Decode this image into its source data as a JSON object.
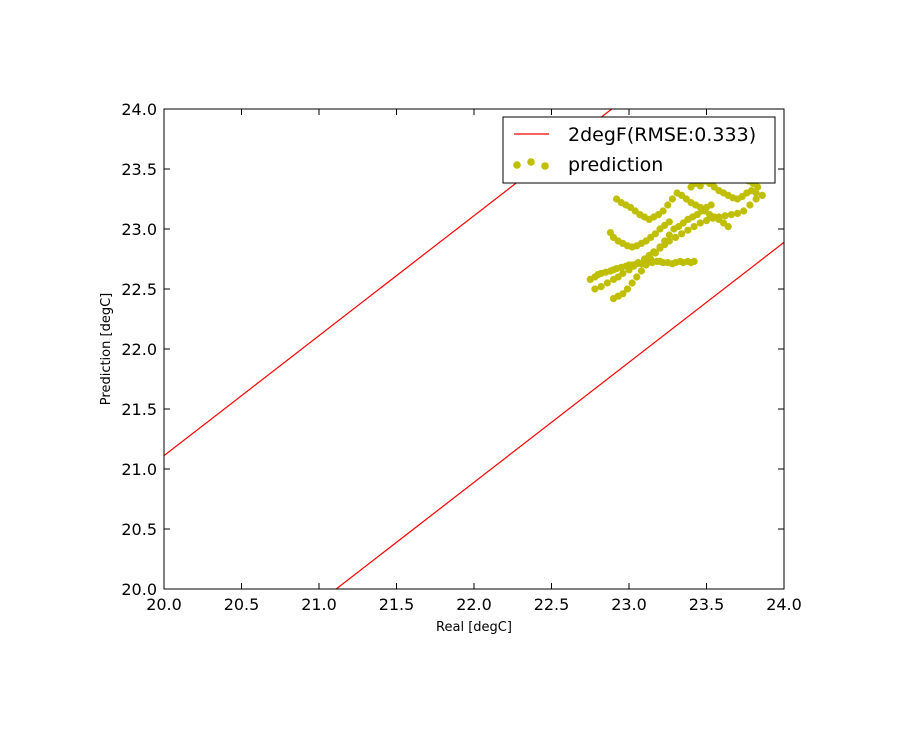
{
  "chart_data": {
    "type": "scatter",
    "xlabel": "Real [degC]",
    "ylabel": "Prediction [degC]",
    "xlim": [
      20.0,
      24.0
    ],
    "ylim": [
      20.0,
      24.0
    ],
    "x_ticks": [
      "20.0",
      "20.5",
      "21.0",
      "21.5",
      "22.0",
      "22.5",
      "23.0",
      "23.5",
      "24.0"
    ],
    "y_ticks": [
      "20.0",
      "20.5",
      "21.0",
      "21.5",
      "22.0",
      "22.5",
      "23.0",
      "23.5",
      "24.0"
    ],
    "grid": false,
    "legend_position": "top-right",
    "legend": {
      "band_label": "2degF(RMSE:0.333)",
      "points_label": "prediction"
    },
    "band": {
      "color": "#ff0000",
      "lines": [
        {
          "x": [
            20.0,
            24.0
          ],
          "y": [
            21.111,
            25.111
          ]
        },
        {
          "x": [
            20.0,
            24.0
          ],
          "y": [
            18.889,
            22.889
          ]
        }
      ]
    },
    "series": [
      {
        "name": "prediction",
        "color": "#bfbf00",
        "x": [
          22.75,
          22.78,
          22.8,
          22.82,
          22.85,
          22.88,
          22.9,
          22.92,
          22.95,
          22.98,
          23.0,
          23.02,
          23.05,
          23.08,
          23.1,
          23.12,
          23.15,
          23.18,
          23.2,
          23.22,
          23.25,
          23.28,
          23.3,
          23.33,
          23.35,
          23.38,
          23.4,
          23.42,
          22.78,
          22.82,
          22.86,
          22.9,
          22.93,
          22.96,
          23.0,
          23.03,
          23.06,
          23.1,
          23.13,
          23.16,
          23.2,
          23.23,
          23.26,
          23.3,
          23.34,
          23.38,
          23.42,
          23.46,
          23.5,
          23.54,
          23.58,
          23.62,
          23.66,
          23.7,
          23.74,
          23.78,
          23.82,
          23.86,
          22.9,
          22.93,
          22.96,
          22.99,
          23.02,
          23.05,
          23.08,
          23.11,
          23.14,
          23.17,
          23.2,
          23.23,
          23.26,
          23.29,
          23.32,
          23.35,
          23.38,
          23.41,
          23.44,
          23.47,
          23.5,
          23.53,
          22.92,
          22.95,
          22.98,
          23.01,
          23.04,
          23.07,
          23.1,
          23.13,
          23.16,
          23.19,
          23.22,
          23.25,
          23.28,
          23.31,
          23.34,
          23.37,
          23.4,
          23.43,
          23.46,
          23.49,
          23.52,
          23.55,
          23.58,
          23.61,
          23.64,
          22.88,
          22.9,
          22.93,
          22.96,
          22.99,
          23.02,
          23.05,
          23.08,
          23.11,
          23.14,
          23.17,
          23.2,
          23.23,
          23.26,
          23.4,
          23.43,
          23.46,
          23.49,
          23.52,
          23.55,
          23.58,
          23.61,
          23.64,
          23.67,
          23.7,
          23.73,
          23.76,
          23.79,
          23.82,
          23.65,
          23.68,
          23.71,
          23.74,
          23.77,
          23.8,
          23.83,
          23.72,
          23.75,
          23.78,
          23.7,
          23.73,
          23.76
        ],
        "y": [
          22.58,
          22.6,
          22.62,
          22.63,
          22.64,
          22.65,
          22.66,
          22.67,
          22.68,
          22.69,
          22.7,
          22.7,
          22.71,
          22.71,
          22.72,
          22.72,
          22.72,
          22.73,
          22.73,
          22.72,
          22.72,
          22.71,
          22.72,
          22.73,
          22.72,
          22.73,
          22.72,
          22.73,
          22.5,
          22.52,
          22.55,
          22.58,
          22.6,
          22.63,
          22.66,
          22.69,
          22.72,
          22.75,
          22.78,
          22.81,
          22.84,
          22.87,
          22.9,
          22.93,
          22.96,
          22.99,
          23.02,
          23.05,
          23.07,
          23.09,
          23.1,
          23.11,
          23.12,
          23.13,
          23.15,
          23.2,
          23.25,
          23.28,
          22.42,
          22.44,
          22.46,
          22.5,
          22.55,
          22.6,
          22.65,
          22.7,
          22.75,
          22.8,
          22.85,
          22.9,
          22.95,
          23.0,
          23.02,
          23.05,
          23.08,
          23.1,
          23.12,
          23.15,
          23.18,
          23.2,
          23.25,
          23.22,
          23.2,
          23.18,
          23.15,
          23.12,
          23.1,
          23.08,
          23.1,
          23.12,
          23.15,
          23.2,
          23.25,
          23.3,
          23.28,
          23.25,
          23.22,
          23.2,
          23.18,
          23.15,
          23.12,
          23.1,
          23.08,
          23.05,
          23.02,
          22.97,
          22.93,
          22.9,
          22.88,
          22.86,
          22.85,
          22.86,
          22.88,
          22.9,
          22.93,
          22.96,
          23.0,
          23.03,
          23.06,
          23.35,
          23.38,
          23.36,
          23.4,
          23.38,
          23.35,
          23.32,
          23.3,
          23.28,
          23.26,
          23.25,
          23.27,
          23.3,
          23.32,
          23.3,
          23.48,
          23.5,
          23.45,
          23.42,
          23.4,
          23.38,
          23.35,
          23.85,
          23.88,
          23.9,
          23.6,
          23.62,
          23.58
        ]
      }
    ]
  }
}
